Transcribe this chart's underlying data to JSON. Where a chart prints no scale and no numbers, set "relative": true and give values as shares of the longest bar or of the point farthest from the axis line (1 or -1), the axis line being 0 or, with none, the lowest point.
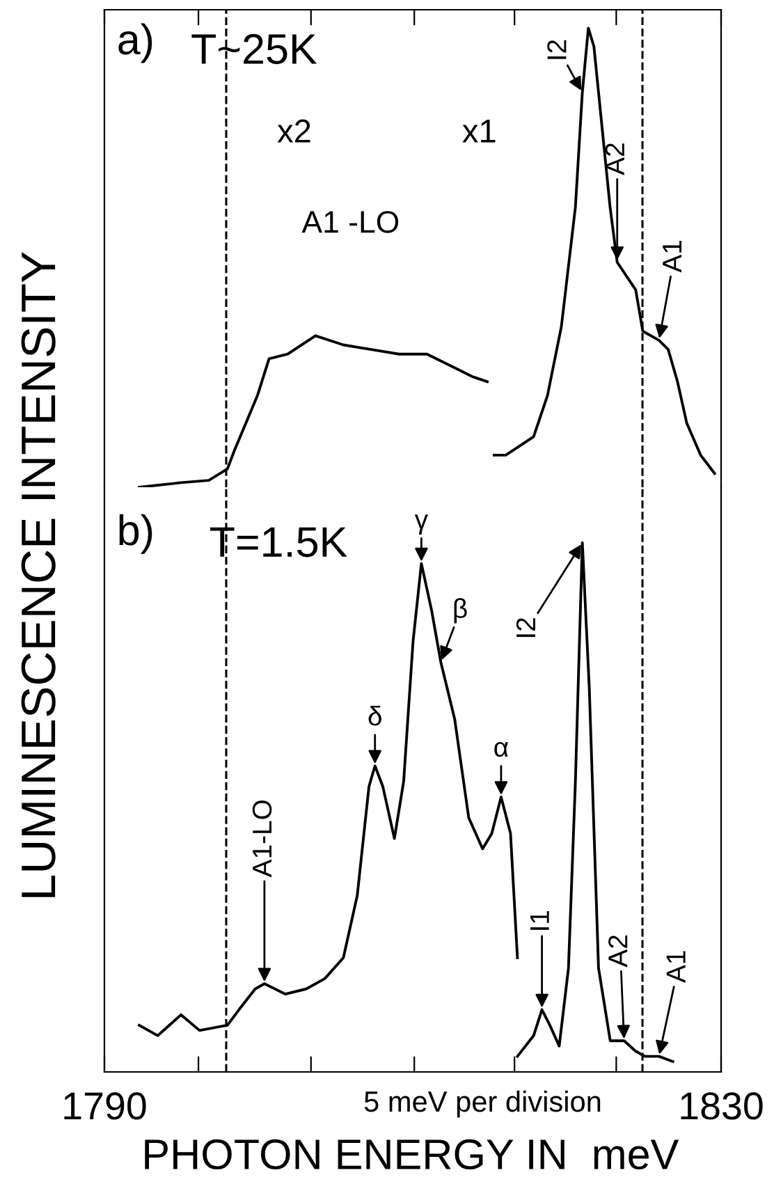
{
  "chart_data": [
    {
      "type": "line",
      "relative": true,
      "ylabel": "LUMINESCENCE INTENSITY",
      "tick_labels": false,
      "xlim": [
        1790,
        1830
      ],
      "xticks": [
        {
          "value": 1790,
          "label": null
        },
        {
          "value": 1796.1,
          "label": null
        },
        {
          "value": 1803.4,
          "label": null
        },
        {
          "value": 1810.1,
          "label": null
        },
        {
          "value": 1816.6,
          "label": null
        },
        {
          "value": 1823.2,
          "label": null
        },
        {
          "value": 1830,
          "label": null
        }
      ],
      "series": [
        {
          "color": "#000000",
          "x": [
            1792.26,
            1794.97,
            1796.77,
            1797.98,
            1798.43,
            1799.18,
            1799.93,
            1800.68,
            1801.89,
            1803.69,
            1805.5,
            1807.31,
            1809.11,
            1810.92,
            1812.73,
            1813.93,
            1814.83
          ],
          "values": [
            0,
            0.01,
            0.015,
            0.04,
            0.08,
            0.14,
            0.2,
            0.28,
            0.29,
            0.33,
            0.31,
            0.3,
            0.29,
            0.29,
            0.26,
            0.24,
            0.23
          ]
        },
        {
          "color": "#000000",
          "x": [
            1815.28,
            1816.03,
            1816.94,
            1817.84,
            1818.74,
            1819.64,
            1820.55,
            1821.0,
            1821.39,
            1821.75,
            1822.2,
            1822.8,
            1823.26,
            1823.86,
            1824.46,
            1824.92,
            1825.97,
            1826.57,
            1827.17,
            1827.77,
            1828.67,
            1829.58
          ],
          "values": [
            0.07,
            0.07,
            0.09,
            0.11,
            0.2,
            0.35,
            0.61,
            0.86,
            1.0,
            0.96,
            0.81,
            0.61,
            0.49,
            0.46,
            0.43,
            0.34,
            0.32,
            0.3,
            0.23,
            0.14,
            0.07,
            0.03
          ]
        }
      ],
      "ref_lines": [
        {
          "axis": "x",
          "value": 1797.9,
          "line_style": "dashed",
          "color": "#000000"
        },
        {
          "axis": "x",
          "value": 1824.9,
          "line_style": "dashed",
          "color": "#000000"
        }
      ],
      "annotations": [
        "a)",
        "T~25K",
        "x2",
        "x1",
        "A1 -LO",
        {
          "text": "I2",
          "x": 1821.0,
          "y": 0.86
        },
        {
          "text": "A2",
          "x": 1823.26,
          "y": 0.49
        },
        {
          "text": "A1",
          "x": 1825.97,
          "y": 0.32
        }
      ]
    },
    {
      "type": "line",
      "relative": true,
      "xlabel": "PHOTON ENERGY IN  meV",
      "tick_labels": "x",
      "xlim": [
        1790,
        1830
      ],
      "xticks": [
        1790,
        {
          "value": 1796.1,
          "label": null
        },
        {
          "value": 1803.4,
          "label": null
        },
        {
          "value": 1810.1,
          "label": null
        },
        {
          "value": 1816.6,
          "label": null
        },
        {
          "value": 1823.2,
          "label": null
        },
        1830
      ],
      "series": [
        {
          "color": "#000000",
          "x": [
            1792.26,
            1793.46,
            1794.97,
            1796.17,
            1797.98,
            1798.73,
            1799.78,
            1800.38,
            1801.74,
            1803.09,
            1804.3,
            1805.5,
            1806.4,
            1807.16,
            1807.55,
            1808.06,
            1808.81,
            1809.41,
            1810.02,
            1810.56,
            1811.22,
            1811.82,
            1812.72,
            1813.63,
            1814.53,
            1815.13,
            1815.73,
            1816.34,
            1816.79
          ],
          "values": [
            0.07,
            0.05,
            0.09,
            0.06,
            0.07,
            0.1,
            0.14,
            0.15,
            0.13,
            0.14,
            0.16,
            0.2,
            0.32,
            0.53,
            0.57,
            0.53,
            0.43,
            0.54,
            0.81,
            0.96,
            0.87,
            0.77,
            0.66,
            0.47,
            0.41,
            0.44,
            0.51,
            0.44,
            0.2
          ]
        },
        {
          "color": "#000000",
          "x": [
            1816.79,
            1817.84,
            1818.38,
            1818.89,
            1819.5,
            1820.1,
            1820.55,
            1821.0,
            1821.45,
            1822.05,
            1822.81,
            1823.71,
            1824.46,
            1825.06,
            1825.97,
            1826.87
          ],
          "values": [
            0.01,
            0.05,
            0.1,
            0.07,
            0.03,
            0.18,
            0.54,
            1.0,
            0.72,
            0.18,
            0.04,
            0.04,
            0.02,
            0.01,
            0.01,
            0.0
          ]
        }
      ],
      "ref_lines": [
        {
          "axis": "x",
          "value": 1797.9,
          "line_style": "dashed",
          "color": "#000000"
        },
        {
          "axis": "x",
          "value": 1824.9,
          "line_style": "dashed",
          "color": "#000000"
        }
      ],
      "annotations": [
        "b)",
        "T=1.5K",
        "5 meV per division",
        {
          "text": "γ",
          "x": 1810.56,
          "y": 0.96
        },
        {
          "text": "β",
          "x": 1811.82,
          "y": 0.77
        },
        {
          "text": "δ",
          "x": 1807.55,
          "y": 0.57
        },
        {
          "text": "α",
          "x": 1815.73,
          "y": 0.51
        },
        {
          "text": "A1-LO",
          "x": 1800.38,
          "y": 0.15
        },
        {
          "text": "I2",
          "x": 1821.0,
          "y": 1.0
        },
        {
          "text": "I1",
          "x": 1818.38,
          "y": 0.1
        },
        {
          "text": "A2",
          "x": 1823.71,
          "y": 0.04
        },
        {
          "text": "A1",
          "x": 1825.97,
          "y": 0.01
        }
      ]
    }
  ]
}
